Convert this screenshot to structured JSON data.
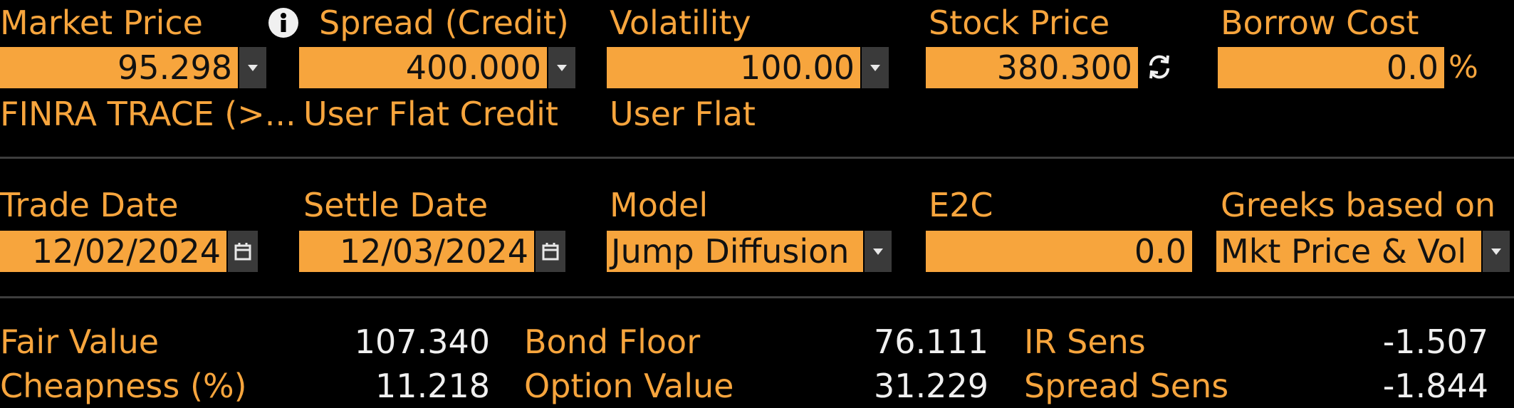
{
  "row1": {
    "market_price": {
      "label": "Market Price",
      "value": "95.298",
      "source": "FINRA TRACE (>..."
    },
    "spread": {
      "label": "Spread (Credit)",
      "value": "400.000",
      "source": "User Flat Credit"
    },
    "volatility": {
      "label": "Volatility",
      "value": "100.00",
      "source": "User Flat"
    },
    "stock_price": {
      "label": "Stock Price",
      "value": "380.300"
    },
    "borrow_cost": {
      "label": "Borrow Cost",
      "value": "0.0",
      "unit": "%"
    }
  },
  "row2": {
    "trade_date": {
      "label": "Trade Date",
      "value": "12/02/2024"
    },
    "settle_date": {
      "label": "Settle Date",
      "value": "12/03/2024"
    },
    "model": {
      "label": "Model",
      "value": "Jump Diffusion"
    },
    "e2c": {
      "label": "E2C",
      "value": "0.0"
    },
    "greeks": {
      "label": "Greeks based on",
      "value": "Mkt Price & Vol"
    }
  },
  "results": {
    "fair_value": {
      "label": "Fair Value",
      "value": "107.340"
    },
    "cheapness": {
      "label": "Cheapness (%)",
      "value": "11.218"
    },
    "bond_floor": {
      "label": "Bond Floor",
      "value": "76.111"
    },
    "option_value": {
      "label": "Option Value",
      "value": "31.229"
    },
    "ir_sens": {
      "label": "IR Sens",
      "value": "-1.507"
    },
    "spread_sens": {
      "label": "Spread Sens",
      "value": "-1.844"
    }
  },
  "icons": {
    "info": "info-icon",
    "dropdown": "chevron-down-icon",
    "calendar": "calendar-icon",
    "refresh": "refresh-icon"
  },
  "colors": {
    "accent": "#f7a53d",
    "background": "#000000",
    "value_text": "#f0f0f0"
  }
}
